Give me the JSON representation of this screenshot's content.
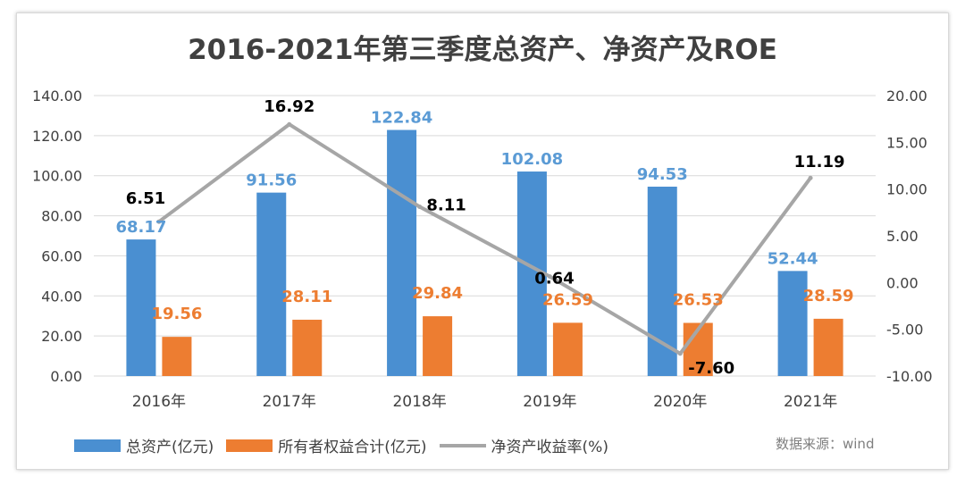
{
  "title": "2016-2021年第三季度总资产、净资产及ROE",
  "source": "数据来源：wind",
  "colors": {
    "total_assets": "#4a8fd1",
    "equity": "#ed7d31",
    "roe": "#a6a6a6",
    "assets_label": "#5b9bd5",
    "equity_label": "#ed7d31",
    "roe_label": "#000000"
  },
  "chart_data": {
    "type": "bar",
    "categories": [
      "2016年",
      "2017年",
      "2018年",
      "2019年",
      "2020年",
      "2021年"
    ],
    "series": [
      {
        "name": "总资产(亿元)",
        "type": "bar",
        "axis": "left",
        "values": [
          68.17,
          91.56,
          122.84,
          102.08,
          94.53,
          52.44
        ],
        "labels": [
          "68.17",
          "91.56",
          "122.84",
          "102.08",
          "94.53",
          "52.44"
        ]
      },
      {
        "name": "所有者权益合计(亿元)",
        "type": "bar",
        "axis": "left",
        "values": [
          19.56,
          28.11,
          29.84,
          26.59,
          26.53,
          28.59
        ],
        "labels": [
          "19.56",
          "28.11",
          "29.84",
          "26.59",
          "26.53",
          "28.59"
        ]
      },
      {
        "name": "净资产收益率(%)",
        "type": "line",
        "axis": "right",
        "values": [
          6.51,
          16.92,
          8.11,
          0.64,
          -7.6,
          11.19
        ],
        "labels": [
          "6.51",
          "16.92",
          "8.11",
          "0.64",
          "-7.60",
          "11.19"
        ]
      }
    ],
    "y_left": {
      "min": 0,
      "max": 140,
      "ticks": [
        "0.00",
        "20.00",
        "40.00",
        "60.00",
        "80.00",
        "100.00",
        "120.00",
        "140.00"
      ]
    },
    "y_right": {
      "min": -10,
      "max": 20,
      "ticks": [
        "-10.00",
        "-5.00",
        "0.00",
        "5.00",
        "10.00",
        "15.00",
        "20.00"
      ]
    },
    "grid": true,
    "legend_position": "bottom"
  }
}
